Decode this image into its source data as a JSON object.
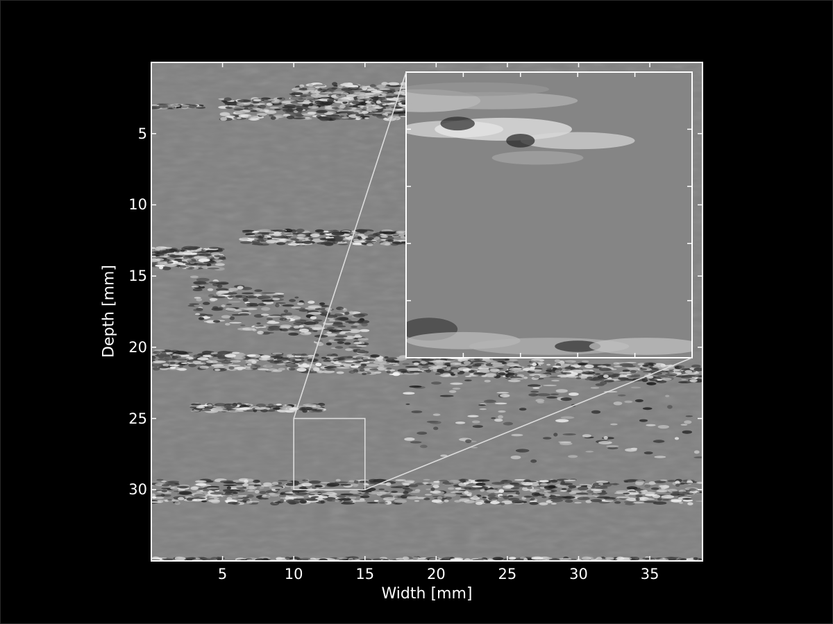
{
  "chart_data": {
    "type": "heatmap",
    "description_kind": "grayscale ultrasound B-mode image with zoom inset",
    "xlabel": "Width [mm]",
    "ylabel": "Depth [mm]",
    "x_ticks": [
      5,
      10,
      15,
      20,
      25,
      30,
      35
    ],
    "y_ticks": [
      5,
      10,
      15,
      20,
      25,
      30
    ],
    "xlim": [
      0,
      38.7
    ],
    "ylim": [
      35,
      0
    ],
    "y_inverted": true,
    "zoom_region": {
      "x": [
        10,
        15
      ],
      "y": [
        25,
        30
      ]
    },
    "colormap": "gray",
    "background": "#000000",
    "axis_color": "#ffffff"
  }
}
